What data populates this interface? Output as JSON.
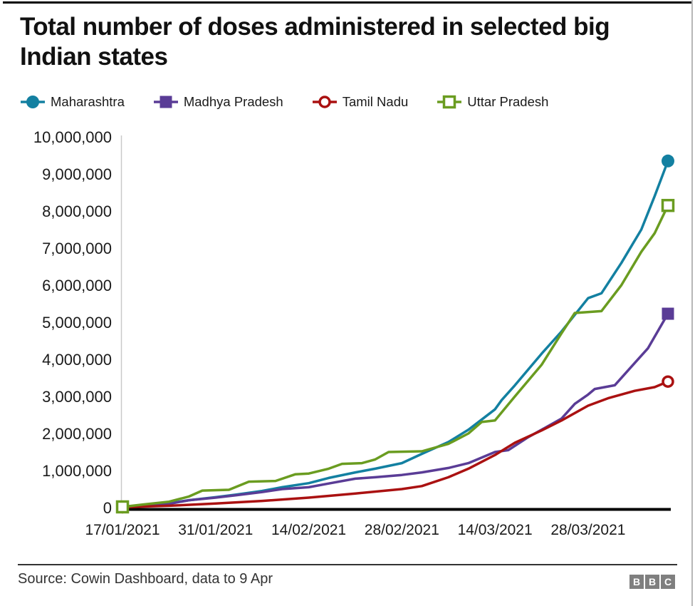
{
  "page": {
    "title_line1": "Total number of doses administered in selected big",
    "title_line2": "Indian states"
  },
  "footer": {
    "source": "Source: Cowin Dashboard, data to 9 Apr",
    "logo_letters": [
      "B",
      "B",
      "C"
    ]
  },
  "chart_data": {
    "type": "line",
    "title": "Total number of doses administered in selected big Indian states",
    "xlabel": "",
    "ylabel": "",
    "grid": false,
    "legend_position": "top",
    "ylim": [
      0,
      10000000
    ],
    "x_is_day_offset_from": "17/01/2021",
    "x_range_days": [
      0,
      82
    ],
    "colors": {
      "maharashtra": "#1380A1",
      "madhya_pradesh": "#5A3C96",
      "tamil_nadu": "#AA1111",
      "uttar_pradesh": "#6A9C20",
      "axis": "#000000",
      "y_axis_line": "#c9c9c9"
    },
    "y_ticks": [
      {
        "value": 0,
        "label": "0"
      },
      {
        "value": 1000000,
        "label": "1,000,000"
      },
      {
        "value": 2000000,
        "label": "2,000,000"
      },
      {
        "value": 3000000,
        "label": "3,000,000"
      },
      {
        "value": 4000000,
        "label": "4,000,000"
      },
      {
        "value": 5000000,
        "label": "5,000,000"
      },
      {
        "value": 6000000,
        "label": "6,000,000"
      },
      {
        "value": 7000000,
        "label": "7,000,000"
      },
      {
        "value": 8000000,
        "label": "8,000,000"
      },
      {
        "value": 9000000,
        "label": "9,000,000"
      },
      {
        "value": 10000000,
        "label": "10,000,000"
      }
    ],
    "x_ticks": [
      {
        "day": 0,
        "label": "17/01/2021"
      },
      {
        "day": 14,
        "label": "31/01/2021"
      },
      {
        "day": 28,
        "label": "14/02/2021"
      },
      {
        "day": 42,
        "label": "28/02/2021"
      },
      {
        "day": 56,
        "label": "14/03/2021"
      },
      {
        "day": 70,
        "label": "28/03/2021"
      }
    ],
    "series": [
      {
        "name": "Maharashtra",
        "color": "#1380A1",
        "marker": "circle-filled",
        "end_value": 9350000,
        "points": [
          [
            0,
            20000
          ],
          [
            3,
            70000
          ],
          [
            7,
            120000
          ],
          [
            10,
            200000
          ],
          [
            14,
            280000
          ],
          [
            17,
            350000
          ],
          [
            21,
            450000
          ],
          [
            24,
            550000
          ],
          [
            28,
            660000
          ],
          [
            31,
            800000
          ],
          [
            35,
            950000
          ],
          [
            38,
            1050000
          ],
          [
            42,
            1200000
          ],
          [
            45,
            1450000
          ],
          [
            49,
            1770000
          ],
          [
            52,
            2100000
          ],
          [
            56,
            2650000
          ],
          [
            57,
            2900000
          ],
          [
            59,
            3300000
          ],
          [
            63,
            4150000
          ],
          [
            66,
            4750000
          ],
          [
            70,
            5650000
          ],
          [
            72,
            5780000
          ],
          [
            75,
            6600000
          ],
          [
            78,
            7500000
          ],
          [
            80,
            8400000
          ],
          [
            82,
            9350000
          ]
        ]
      },
      {
        "name": "Madhya Pradesh",
        "color": "#5A3C96",
        "marker": "square-filled",
        "end_value": 5230000,
        "points": [
          [
            0,
            20000
          ],
          [
            3,
            60000
          ],
          [
            7,
            100000
          ],
          [
            10,
            200000
          ],
          [
            14,
            270000
          ],
          [
            17,
            330000
          ],
          [
            21,
            420000
          ],
          [
            24,
            500000
          ],
          [
            28,
            550000
          ],
          [
            31,
            650000
          ],
          [
            35,
            780000
          ],
          [
            38,
            820000
          ],
          [
            42,
            880000
          ],
          [
            45,
            950000
          ],
          [
            49,
            1070000
          ],
          [
            52,
            1200000
          ],
          [
            56,
            1500000
          ],
          [
            58,
            1550000
          ],
          [
            61,
            1900000
          ],
          [
            63,
            2100000
          ],
          [
            66,
            2400000
          ],
          [
            68,
            2800000
          ],
          [
            70,
            3050000
          ],
          [
            71,
            3200000
          ],
          [
            74,
            3300000
          ],
          [
            77,
            3900000
          ],
          [
            79,
            4300000
          ],
          [
            82,
            5230000
          ]
        ]
      },
      {
        "name": "Tamil Nadu",
        "color": "#AA1111",
        "marker": "circle-open",
        "end_value": 3400000,
        "points": [
          [
            0,
            10000
          ],
          [
            7,
            50000
          ],
          [
            14,
            110000
          ],
          [
            21,
            180000
          ],
          [
            28,
            270000
          ],
          [
            35,
            380000
          ],
          [
            42,
            500000
          ],
          [
            45,
            580000
          ],
          [
            49,
            820000
          ],
          [
            52,
            1050000
          ],
          [
            56,
            1420000
          ],
          [
            59,
            1750000
          ],
          [
            63,
            2080000
          ],
          [
            66,
            2350000
          ],
          [
            70,
            2750000
          ],
          [
            73,
            2950000
          ],
          [
            77,
            3150000
          ],
          [
            80,
            3250000
          ],
          [
            82,
            3400000
          ]
        ]
      },
      {
        "name": "Uttar Pradesh",
        "color": "#6A9C20",
        "marker": "square-open",
        "end_value": 8150000,
        "points": [
          [
            0,
            20000
          ],
          [
            3,
            80000
          ],
          [
            7,
            160000
          ],
          [
            10,
            300000
          ],
          [
            12,
            460000
          ],
          [
            16,
            480000
          ],
          [
            19,
            700000
          ],
          [
            23,
            720000
          ],
          [
            26,
            900000
          ],
          [
            28,
            920000
          ],
          [
            31,
            1050000
          ],
          [
            33,
            1180000
          ],
          [
            36,
            1200000
          ],
          [
            38,
            1300000
          ],
          [
            40,
            1500000
          ],
          [
            45,
            1520000
          ],
          [
            49,
            1720000
          ],
          [
            52,
            2000000
          ],
          [
            54,
            2310000
          ],
          [
            56,
            2350000
          ],
          [
            59,
            3000000
          ],
          [
            63,
            3850000
          ],
          [
            66,
            4700000
          ],
          [
            68,
            5250000
          ],
          [
            72,
            5300000
          ],
          [
            75,
            6000000
          ],
          [
            78,
            6900000
          ],
          [
            80,
            7400000
          ],
          [
            82,
            8150000
          ]
        ]
      }
    ]
  }
}
